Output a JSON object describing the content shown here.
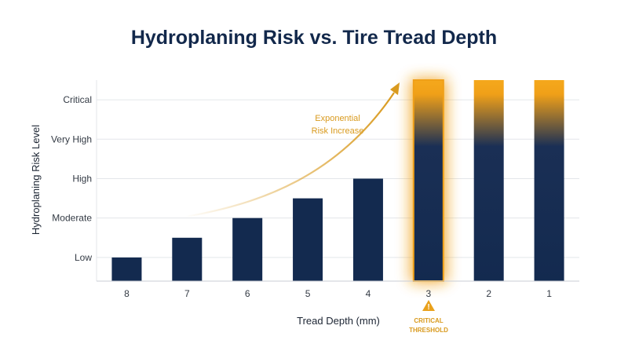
{
  "chart_data": {
    "type": "bar",
    "title": "Hydroplaning Risk vs. Tire Tread Depth",
    "xlabel": "Tread Depth (mm)",
    "ylabel": "Hydroplaning Risk Level",
    "categories": [
      "8",
      "7",
      "6",
      "5",
      "4",
      "3",
      "2",
      "1"
    ],
    "values": [
      1,
      1.5,
      2,
      2.5,
      3,
      5.5,
      5.5,
      5.5
    ],
    "y_ticks": [
      {
        "value": 1,
        "label": "Low"
      },
      {
        "value": 2,
        "label": "Moderate"
      },
      {
        "value": 3,
        "label": "High"
      },
      {
        "value": 4,
        "label": "Very High"
      },
      {
        "value": 5,
        "label": "Critical"
      }
    ],
    "ylim": [
      0.4,
      5.5
    ],
    "grid": true,
    "legend": "none",
    "highlight_category": "3",
    "annotations": {
      "trend_line1": "Exponential",
      "trend_line2": "Risk Increase",
      "threshold_line1": "CRITICAL",
      "threshold_line2": "THRESHOLD",
      "warning_glyph": "!"
    },
    "colors": {
      "bar": "#132a4f",
      "accent": "#f0a018",
      "grid": "#e3e6ea",
      "title": "#12284b"
    },
    "icons": [
      "warning-triangle-icon"
    ]
  }
}
